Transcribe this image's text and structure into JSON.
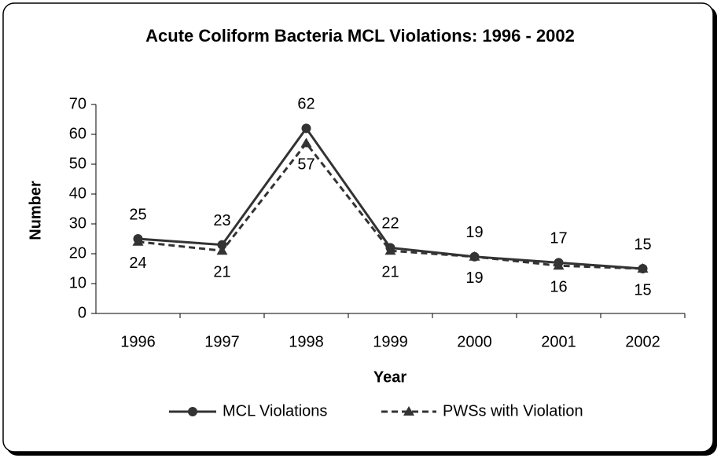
{
  "chart_data": {
    "type": "line",
    "title": "Acute Coliform Bacteria MCL Violations: 1996 - 2002",
    "x_label": "Year",
    "y_label": "Number",
    "categories": [
      "1996",
      "1997",
      "1998",
      "1999",
      "2000",
      "2001",
      "2002"
    ],
    "series": [
      {
        "name": "MCL Violations",
        "color": "#333333",
        "marker": "circle",
        "dashed": false,
        "values": [
          25,
          23,
          62,
          22,
          19,
          17,
          15
        ]
      },
      {
        "name": "PWSs with Violation",
        "color": "#333333",
        "marker": "triangle",
        "dashed": true,
        "values": [
          24,
          21,
          57,
          21,
          19,
          16,
          15
        ]
      }
    ],
    "ylim": [
      0,
      70
    ],
    "yticks": [
      0,
      10,
      20,
      30,
      40,
      50,
      60,
      70
    ],
    "grid": false,
    "legend": "bottom"
  }
}
